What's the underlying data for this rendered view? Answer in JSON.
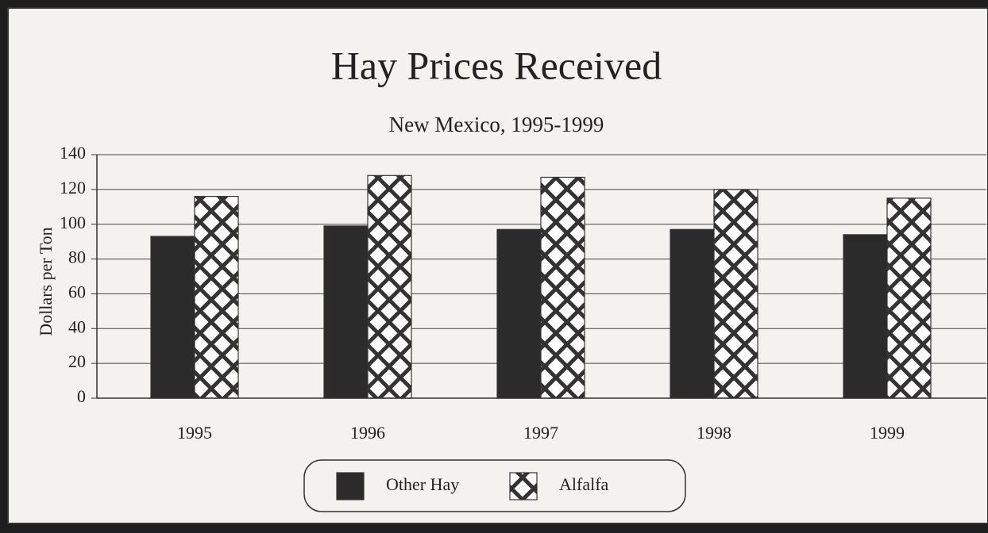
{
  "chart_data": {
    "type": "bar",
    "title": "Hay Prices Received",
    "subtitle": "New Mexico, 1995-1999",
    "y_label": "Dollars per Ton",
    "categories": [
      "1995",
      "1996",
      "1997",
      "1998",
      "1999"
    ],
    "series": [
      {
        "name": "Other Hay",
        "color": "#2b2b2b",
        "values": [
          93,
          99,
          97,
          97,
          94
        ]
      },
      {
        "name": "Alfalfa",
        "color": "#ffffff",
        "hatch": "crosshatch",
        "values": [
          116,
          128,
          127,
          120,
          115
        ]
      }
    ],
    "ylim": [
      0,
      140
    ],
    "yticks": [
      0,
      20,
      40,
      60,
      80,
      100,
      120,
      140
    ],
    "grid": true,
    "legend": "bottom"
  }
}
